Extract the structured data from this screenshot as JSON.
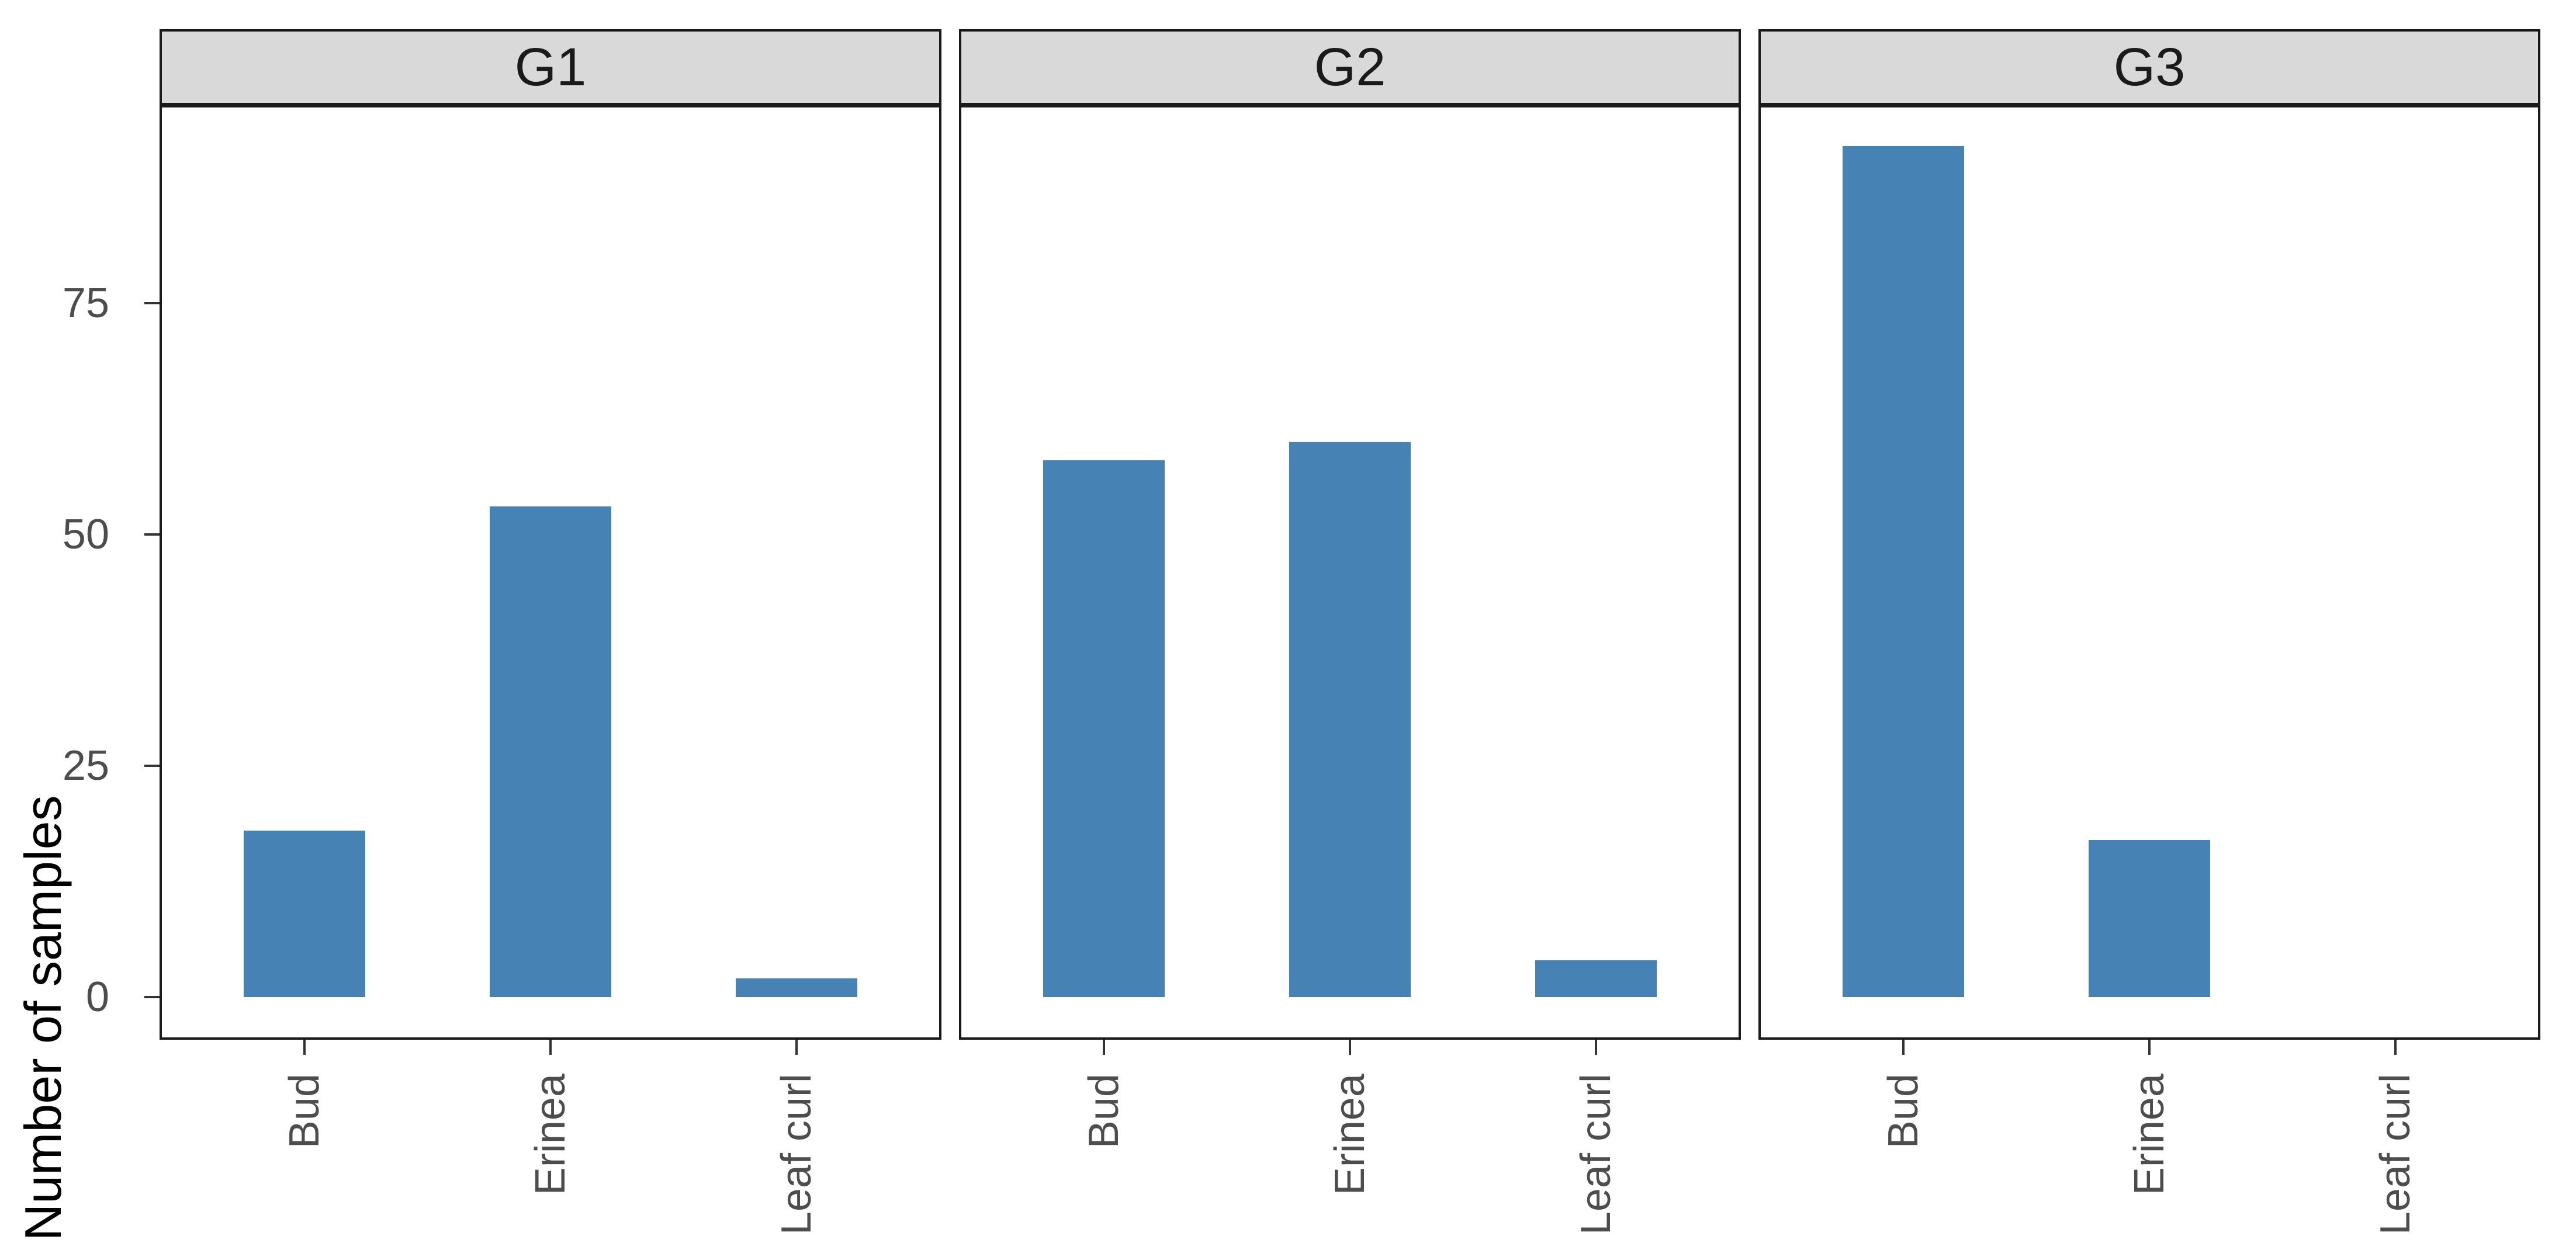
{
  "chart_data": {
    "type": "bar",
    "title": "",
    "ylabel": "Number of samples",
    "xlabel": "",
    "categories": [
      "Bud",
      "Erinea",
      "Leaf curl"
    ],
    "facets": [
      {
        "label": "G1",
        "values": [
          18,
          53,
          2
        ]
      },
      {
        "label": "G2",
        "values": [
          58,
          60,
          4
        ]
      },
      {
        "label": "G3",
        "values": [
          92,
          17,
          0
        ]
      }
    ],
    "yticks": [
      0,
      25,
      50,
      75
    ],
    "ylim": [
      0,
      96.4
    ],
    "grid": false,
    "legend_position": "none",
    "bar_color": "#4682b4",
    "strip_background": "#d9d9d9",
    "panel_border_color": "#1a1a1a",
    "tick_color": "#333333",
    "axis_text_color": "#4d4d4d",
    "axis_title_color": "#000000"
  }
}
